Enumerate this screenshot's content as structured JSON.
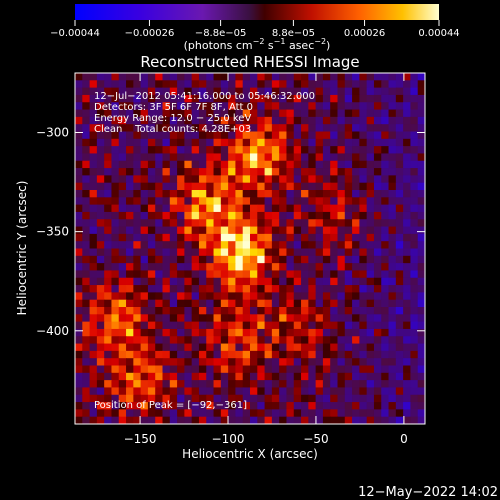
{
  "chart_data": {
    "type": "heatmap",
    "title": "Reconstructed RHESSI Image",
    "xlabel": "Heliocentric X (arcsec)",
    "ylabel": "Heliocentric Y (arcsec)",
    "xlim": [
      -187,
      12
    ],
    "ylim": [
      -447,
      -270
    ],
    "x_ticks": [
      -150,
      -100,
      -50,
      0
    ],
    "x_tick_labels": [
      "−150",
      "−100",
      "−50",
      "0"
    ],
    "y_ticks": [
      -300,
      -350,
      -400
    ],
    "y_tick_labels": [
      "−300",
      "−350",
      "−400"
    ],
    "colorbar": {
      "label_main": "(photons cm",
      "label_sup1": "−2",
      "label_mid1": " s",
      "label_sup2": "−1",
      "label_mid2": " asec",
      "label_sup3": "−2",
      "label_end": ")",
      "range": [
        -0.00044,
        0.00044
      ],
      "ticks": [
        -0.00044,
        -0.00026,
        -8.8e-05,
        8.8e-05,
        0.00026,
        0.00044
      ],
      "tick_labels": [
        "−0.00044",
        "−0.00026",
        "−8.8e−05",
        "8.8e−05",
        "0.00026",
        "0.00044"
      ]
    },
    "annotations": [
      "12−Jul−2012 05:41:16.000 to 05:46:32.000",
      "Detectors: 3F 5F 6F 7F 8F, Att 0",
      "Energy Range: 12.0 − 25.0 keV",
      "Clean    Total counts: 4.28E+03"
    ],
    "peak_label": "Position of Peak = [−92,−361]",
    "peak": [
      -92,
      -361
    ],
    "sources": [
      {
        "x": -92,
        "y": -361,
        "amplitude": 1.0
      },
      {
        "x": -83,
        "y": -310,
        "amplitude": 0.78
      },
      {
        "x": -112,
        "y": -335,
        "amplitude": 0.7
      },
      {
        "x": -165,
        "y": -395,
        "amplitude": 0.65
      },
      {
        "x": -150,
        "y": -425,
        "amplitude": 0.55
      },
      {
        "x": -95,
        "y": -405,
        "amplitude": 0.5
      },
      {
        "x": -60,
        "y": -400,
        "amplitude": 0.35
      },
      {
        "x": -40,
        "y": -340,
        "amplitude": 0.3
      }
    ]
  },
  "footer_timestamp": "12−May−2022 14:02"
}
